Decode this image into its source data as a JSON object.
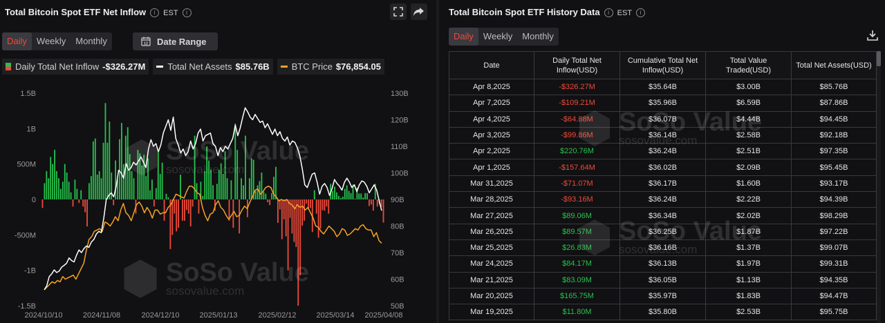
{
  "left": {
    "title": "Total Bitcoin Spot ETF Net Inflow",
    "timezone": "EST",
    "tabs": [
      "Daily",
      "Weekly",
      "Monthly"
    ],
    "active_tab": "Daily",
    "date_range_label": "Date Range",
    "legend": [
      {
        "label": "Daily Total Net Inflow",
        "value": "-$326.27M",
        "color": "#27c24c"
      },
      {
        "label": "Total Net Assets",
        "value": "$85.76B",
        "color": "#ffffff"
      },
      {
        "label": "BTC Price",
        "value": "$76,854.05",
        "color": "#f7a325"
      }
    ]
  },
  "right": {
    "title": "Total Bitcoin Spot ETF History Data",
    "timezone": "EST",
    "tabs": [
      "Daily",
      "Weekly",
      "Monthly"
    ],
    "active_tab": "Daily",
    "columns": [
      "Date",
      "Daily Total Net Inflow(USD)",
      "Cumulative Total Net Inflow(USD)",
      "Total Value Traded(USD)",
      "Total Net Assets(USD)"
    ],
    "rows": [
      [
        "Apr 8,2025",
        "-$326.27M",
        "$35.64B",
        "$3.00B",
        "$85.76B"
      ],
      [
        "Apr 7,2025",
        "-$109.21M",
        "$35.96B",
        "$6.59B",
        "$87.86B"
      ],
      [
        "Apr 4,2025",
        "-$64.88M",
        "$36.07B",
        "$4.44B",
        "$94.45B"
      ],
      [
        "Apr 3,2025",
        "-$99.86M",
        "$36.14B",
        "$2.58B",
        "$92.18B"
      ],
      [
        "Apr 2,2025",
        "$220.76M",
        "$36.24B",
        "$2.51B",
        "$97.35B"
      ],
      [
        "Apr 1,2025",
        "-$157.64M",
        "$36.02B",
        "$2.09B",
        "$95.45B"
      ],
      [
        "Mar 31,2025",
        "-$71.07M",
        "$36.17B",
        "$1.60B",
        "$93.17B"
      ],
      [
        "Mar 28,2025",
        "-$93.16M",
        "$36.24B",
        "$2.22B",
        "$94.39B"
      ],
      [
        "Mar 27,2025",
        "$89.06M",
        "$36.34B",
        "$2.02B",
        "$98.29B"
      ],
      [
        "Mar 26,2025",
        "$89.57M",
        "$36.25B",
        "$1.87B",
        "$97.22B"
      ],
      [
        "Mar 25,2025",
        "$26.83M",
        "$36.16B",
        "$1.37B",
        "$99.07B"
      ],
      [
        "Mar 24,2025",
        "$84.17M",
        "$36.13B",
        "$1.97B",
        "$99.31B"
      ],
      [
        "Mar 21,2025",
        "$83.09M",
        "$36.05B",
        "$1.13B",
        "$94.35B"
      ],
      [
        "Mar 20,2025",
        "$165.75M",
        "$35.97B",
        "$1.83B",
        "$94.47B"
      ],
      [
        "Mar 19,2025",
        "$11.80M",
        "$35.80B",
        "$2.53B",
        "$95.75B"
      ]
    ]
  },
  "watermark": {
    "brand": "SoSo Value",
    "site": "sosovalue.com"
  },
  "colors": {
    "positive": "#27c24c",
    "negative": "#ef4a3a",
    "assets_line": "#ffffff",
    "btc_line": "#f7a325",
    "active_tab": "#ef4a3a"
  },
  "icons": [
    "info-icon",
    "fullscreen-icon",
    "share-icon",
    "calendar-icon",
    "download-icon"
  ],
  "chart_data": {
    "type": "bar",
    "y_left": {
      "min": -1500,
      "max": 1500,
      "unit": "M USD",
      "ticks": [
        "1.5B",
        "1B",
        "500M",
        "0",
        "-500M",
        "-1B",
        "-1.5B"
      ]
    },
    "y_right": {
      "min": 50,
      "max": 130,
      "unit": "B USD",
      "ticks": [
        "130B",
        "120B",
        "110B",
        "100B",
        "90B",
        "80B",
        "70B",
        "60B",
        "50B"
      ]
    },
    "x_ticks": [
      "2024/10/10",
      "2024/11/08",
      "2024/12/10",
      "2025/01/13",
      "2025/02/12",
      "2025/03/14",
      "2025/04/08"
    ],
    "grid": false,
    "series": [
      {
        "name": "Daily Total Net Inflow",
        "type": "bar",
        "axis": "left",
        "values": [
          -120,
          230,
          400,
          300,
          600,
          500,
          700,
          400,
          300,
          150,
          250,
          500,
          380,
          250,
          100,
          -100,
          280,
          150,
          -50,
          130,
          -100,
          -180,
          -380,
          230,
          330,
          820,
          860,
          350,
          400,
          300,
          800,
          1360,
          800,
          1100,
          380,
          -80,
          550,
          280,
          850,
          1080,
          500,
          900,
          1020,
          640,
          400,
          300,
          -200,
          700,
          650,
          480,
          630,
          330,
          580,
          130,
          280,
          -100,
          160,
          700,
          360,
          520,
          -300,
          80,
          30,
          -700,
          -500,
          -200,
          -450,
          -400,
          350,
          -300,
          -300,
          -150,
          -200,
          -380,
          -100,
          900,
          230,
          -200,
          250,
          50,
          400,
          750,
          550,
          420,
          200,
          -160,
          220,
          420,
          510,
          360,
          680,
          300,
          -300,
          270,
          -400,
          1070,
          700,
          -480,
          300,
          200,
          900,
          -250,
          300,
          580,
          560,
          120,
          200,
          260,
          380,
          110,
          80,
          -40,
          -80,
          90,
          320,
          460,
          -330,
          -140,
          -560,
          -280,
          -520,
          -1000,
          -260,
          -480,
          -600,
          -670,
          -1500,
          -1070,
          -370,
          -300,
          -60,
          -140,
          -120,
          -460,
          130,
          -200,
          -540,
          -410,
          -150,
          -160,
          -100,
          -200,
          220,
          120,
          180,
          100,
          50,
          20,
          40,
          150,
          200,
          120,
          90,
          210,
          11,
          166,
          83,
          84,
          27,
          90,
          89,
          -93,
          -71,
          -158,
          221,
          -100,
          -65,
          -109,
          -326
        ]
      },
      {
        "name": "Total Net Assets",
        "type": "line",
        "axis": "right",
        "values": [
          56,
          57.5,
          61,
          62,
          63.5,
          62.5,
          63,
          64.5,
          65.2,
          66,
          68,
          67,
          66.5,
          69,
          71,
          70,
          71.5,
          72.5,
          72,
          74,
          75,
          77,
          78,
          77.5,
          83,
          90,
          91.5,
          92.5,
          91,
          95,
          101,
          100,
          98,
          103.5,
          101,
          102,
          104,
          103,
          104.5,
          106,
          104,
          102,
          109,
          112.5,
          110,
          111,
          108,
          110.5,
          115,
          117.5,
          120,
          116,
          121,
          113,
          110.5,
          107.5,
          109,
          106.5,
          108,
          112,
          109,
          111,
          115,
          116.5,
          112,
          114,
          114.5,
          115,
          111,
          110,
          106.5,
          109.5,
          108,
          110,
          109,
          111,
          113,
          118,
          114,
          117,
          121,
          124.5,
          123,
          121,
          120,
          122,
          120.5,
          119,
          119.5,
          117,
          118.5,
          116.5,
          114.5,
          116.5,
          114,
          115.5,
          113,
          112,
          113.5,
          110.5,
          112,
          111.5,
          109.5,
          106.5,
          101.5,
          95.5,
          94.5,
          97,
          99.5,
          100,
          96.5,
          92,
          95,
          96,
          94.5,
          91.5,
          94,
          97.5,
          96,
          95,
          93.5,
          96.5,
          98,
          96.5,
          94.5,
          95.5,
          93,
          95.5,
          97,
          96.5,
          95,
          92.5,
          94,
          95.5,
          93.5,
          89.5,
          85.8
        ]
      },
      {
        "name": "BTC Price",
        "type": "line",
        "axis": "right",
        "values": [
          56,
          57,
          58,
          59,
          58.5,
          59.5,
          59,
          61,
          60,
          60.5,
          61,
          61.5,
          60,
          62,
          64,
          66,
          71,
          75,
          76,
          78,
          78.5,
          79,
          78,
          81.5,
          81,
          80,
          81.5,
          83.5,
          82,
          86,
          88.5,
          85,
          84,
          82,
          85,
          88,
          89,
          87.5,
          85,
          87,
          85.5,
          83,
          86,
          86,
          84.5,
          85,
          85,
          87,
          88,
          90,
          92,
          91.5,
          91,
          90.5,
          93,
          95,
          95,
          94,
          92.5,
          92,
          87,
          84,
          82,
          84.5,
          85,
          88,
          89.5,
          87,
          86,
          84,
          82.5,
          84,
          85.5,
          83.5,
          84,
          86,
          87.5,
          86.5,
          89,
          91,
          93.5,
          94,
          92,
          93,
          94.5,
          95,
          94.5,
          92,
          91,
          89.5,
          90,
          89.5,
          90,
          88.5,
          88,
          86.5,
          88,
          87,
          87.5,
          86,
          87,
          85,
          83,
          80,
          79.5,
          78,
          77,
          78.5,
          80,
          79,
          78,
          76,
          77,
          79,
          78.5,
          76.5,
          77,
          78,
          79,
          78.5,
          80,
          80.5,
          79,
          78.5,
          78.5,
          76,
          77.5,
          74.5,
          73.5
        ]
      }
    ]
  }
}
